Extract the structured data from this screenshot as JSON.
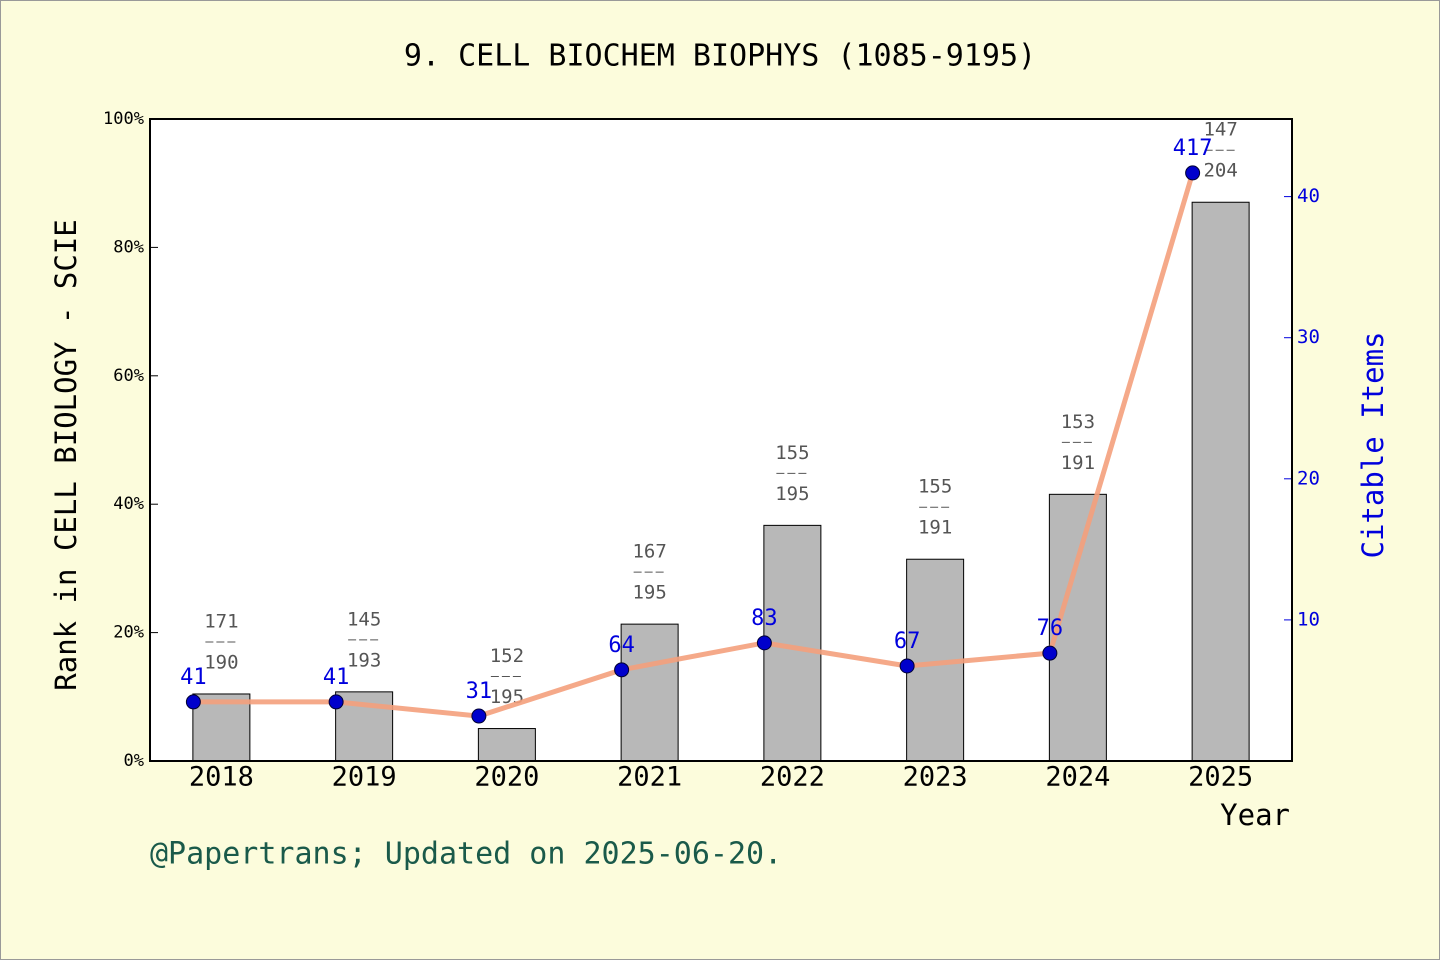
{
  "chart_data": {
    "type": "bar",
    "title": "9. CELL BIOCHEM BIOPHYS (1085-9195)",
    "xlabel": "Year",
    "ylabel": "Rank in CELL BIOLOGY - SCIE",
    "y2label": "Citable Items",
    "footer": "@Papertrans; Updated on 2025-06-20.",
    "categories": [
      "2018",
      "2019",
      "2020",
      "2021",
      "2022",
      "2023",
      "2024",
      "2025"
    ],
    "ylim": [
      0,
      100
    ],
    "yticks": [
      {
        "value": 0,
        "label": "0%"
      },
      {
        "value": 20,
        "label": "20%"
      },
      {
        "value": 40,
        "label": "40%"
      },
      {
        "value": 60,
        "label": "60%"
      },
      {
        "value": 80,
        "label": "80%"
      },
      {
        "value": 100,
        "label": "100%"
      }
    ],
    "y2lim": [
      0,
      45.5
    ],
    "y2ticks": [
      10,
      20,
      30,
      40
    ],
    "series": [
      {
        "type": "bar",
        "axis": "y2",
        "color": "#b8b8b8",
        "values": [
          4.75,
          4.9,
          2.3,
          9.7,
          16.7,
          14.3,
          18.9,
          39.6
        ],
        "rank_labels": [
          [
            "171",
            "190"
          ],
          [
            "145",
            "193"
          ],
          [
            "152",
            "195"
          ],
          [
            "167",
            "195"
          ],
          [
            "155",
            "195"
          ],
          [
            "155",
            "191"
          ],
          [
            "153",
            "191"
          ],
          [
            "147",
            "204"
          ]
        ]
      },
      {
        "type": "line",
        "color": "#f4a07c",
        "marker_color": "#0000cc",
        "values": [
          9.2,
          9.2,
          7.0,
          14.2,
          18.4,
          14.8,
          16.8,
          91.6
        ],
        "point_labels": [
          "41",
          "41",
          "31",
          "64",
          "83",
          "67",
          "76",
          "417"
        ]
      }
    ]
  }
}
